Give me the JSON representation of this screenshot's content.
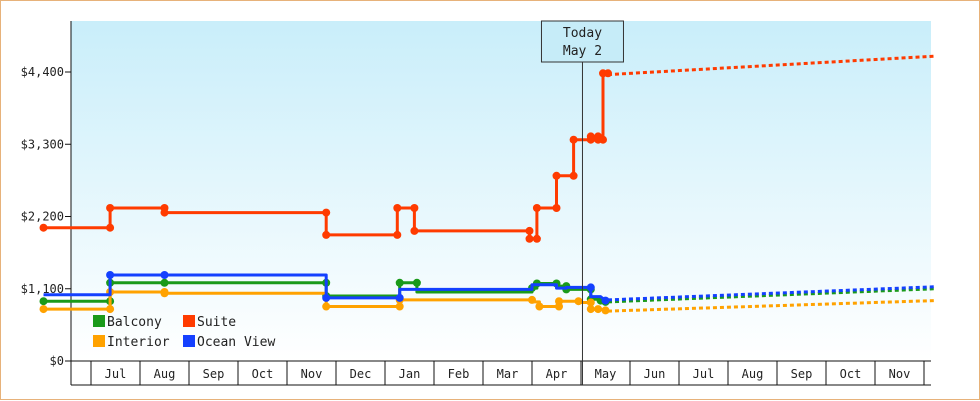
{
  "chart_data": {
    "type": "line",
    "title": "",
    "xlabel": "",
    "ylabel": "",
    "ylim": [
      0,
      4400
    ],
    "yticks": [
      {
        "value": 0,
        "label": "$0"
      },
      {
        "value": 1100,
        "label": "$1,100"
      },
      {
        "value": 2200,
        "label": "$2,200"
      },
      {
        "value": 3300,
        "label": "$3,300"
      },
      {
        "value": 4400,
        "label": "$4,400"
      }
    ],
    "months": [
      "Jul",
      "Aug",
      "Sep",
      "Oct",
      "Nov",
      "Dec",
      "Jan",
      "Feb",
      "Mar",
      "Apr",
      "May",
      "Jun",
      "Jul",
      "Aug",
      "Sep",
      "Oct",
      "Nov"
    ],
    "today": {
      "line1": "Today",
      "line2": "May 2",
      "x": 10.03
    },
    "grid": false,
    "legend_position": "bottom-left",
    "series": [
      {
        "name": "Balcony",
        "color": "#1a9a1a",
        "points": [
          [
            -0.97,
            910
          ],
          [
            0.39,
            910
          ],
          [
            0.39,
            1190
          ],
          [
            1.5,
            1190
          ],
          [
            1.5,
            1190
          ],
          [
            4.8,
            1190
          ],
          [
            4.8,
            990
          ],
          [
            6.3,
            990
          ],
          [
            6.3,
            1190
          ],
          [
            6.65,
            1190
          ],
          [
            6.65,
            1050
          ],
          [
            9.0,
            1050
          ],
          [
            9.0,
            1110
          ],
          [
            9.1,
            1110
          ],
          [
            9.1,
            1180
          ],
          [
            9.5,
            1180
          ],
          [
            9.5,
            1140
          ],
          [
            9.7,
            1140
          ],
          [
            9.7,
            1090
          ],
          [
            10.2,
            1090
          ],
          [
            10.2,
            940
          ],
          [
            10.45,
            940
          ],
          [
            10.5,
            900
          ]
        ],
        "forecast": [
          [
            10.55,
            900
          ],
          [
            17.2,
            1100
          ]
        ],
        "markers": [
          [
            -0.97,
            910
          ],
          [
            0.39,
            910
          ],
          [
            0.39,
            1190
          ],
          [
            1.5,
            1190
          ],
          [
            4.8,
            1190
          ],
          [
            4.8,
            990
          ],
          [
            6.3,
            1190
          ],
          [
            6.65,
            1190
          ],
          [
            9.0,
            1110
          ],
          [
            9.1,
            1180
          ],
          [
            9.5,
            1180
          ],
          [
            9.7,
            1140
          ],
          [
            9.7,
            1090
          ],
          [
            10.2,
            1090
          ],
          [
            10.2,
            940
          ],
          [
            10.4,
            920
          ],
          [
            10.5,
            900
          ]
        ]
      },
      {
        "name": "Suite",
        "color": "#ff3b00",
        "points": [
          [
            -0.97,
            2030
          ],
          [
            0.39,
            2030
          ],
          [
            0.39,
            2330
          ],
          [
            1.5,
            2330
          ],
          [
            1.5,
            2260
          ],
          [
            4.8,
            2260
          ],
          [
            4.8,
            1920
          ],
          [
            6.25,
            1920
          ],
          [
            6.25,
            2330
          ],
          [
            6.6,
            2330
          ],
          [
            6.6,
            1980
          ],
          [
            8.95,
            1980
          ],
          [
            8.95,
            1860
          ],
          [
            9.1,
            1860
          ],
          [
            9.1,
            2330
          ],
          [
            9.5,
            2330
          ],
          [
            9.5,
            2820
          ],
          [
            9.85,
            2820
          ],
          [
            9.85,
            3370
          ],
          [
            10.2,
            3370
          ],
          [
            10.2,
            3420
          ],
          [
            10.35,
            3420
          ],
          [
            10.35,
            3370
          ],
          [
            10.45,
            3370
          ],
          [
            10.45,
            4380
          ],
          [
            10.55,
            4380
          ]
        ],
        "forecast": [
          [
            10.55,
            4360
          ],
          [
            17.2,
            4640
          ]
        ],
        "markers": [
          [
            -0.97,
            2030
          ],
          [
            0.39,
            2030
          ],
          [
            0.39,
            2330
          ],
          [
            1.5,
            2330
          ],
          [
            1.5,
            2260
          ],
          [
            4.8,
            2260
          ],
          [
            4.8,
            1920
          ],
          [
            6.25,
            1920
          ],
          [
            6.25,
            2330
          ],
          [
            6.6,
            2330
          ],
          [
            6.6,
            1980
          ],
          [
            8.95,
            1980
          ],
          [
            8.95,
            1860
          ],
          [
            9.1,
            1860
          ],
          [
            9.1,
            2330
          ],
          [
            9.5,
            2330
          ],
          [
            9.5,
            2820
          ],
          [
            9.85,
            2820
          ],
          [
            9.85,
            3370
          ],
          [
            10.2,
            3370
          ],
          [
            10.2,
            3420
          ],
          [
            10.35,
            3420
          ],
          [
            10.35,
            3370
          ],
          [
            10.45,
            3370
          ],
          [
            10.45,
            4380
          ],
          [
            10.55,
            4380
          ]
        ]
      },
      {
        "name": "Interior",
        "color": "#ffa200",
        "points": [
          [
            -0.97,
            790
          ],
          [
            0.39,
            790
          ],
          [
            0.39,
            1050
          ],
          [
            1.5,
            1050
          ],
          [
            1.5,
            1030
          ],
          [
            4.8,
            1030
          ],
          [
            4.8,
            830
          ],
          [
            6.3,
            830
          ],
          [
            6.3,
            930
          ],
          [
            9.0,
            930
          ],
          [
            9.0,
            900
          ],
          [
            9.15,
            900
          ],
          [
            9.15,
            830
          ],
          [
            9.55,
            830
          ],
          [
            9.55,
            910
          ],
          [
            9.95,
            910
          ],
          [
            9.95,
            890
          ],
          [
            10.2,
            890
          ],
          [
            10.2,
            790
          ],
          [
            10.4,
            790
          ],
          [
            10.5,
            770
          ]
        ],
        "forecast": [
          [
            10.55,
            760
          ],
          [
            17.2,
            920
          ]
        ],
        "markers": [
          [
            -0.97,
            790
          ],
          [
            0.39,
            790
          ],
          [
            0.39,
            1050
          ],
          [
            1.5,
            1050
          ],
          [
            1.5,
            1030
          ],
          [
            4.8,
            830
          ],
          [
            6.3,
            830
          ],
          [
            6.3,
            930
          ],
          [
            9.0,
            930
          ],
          [
            9.15,
            830
          ],
          [
            9.55,
            830
          ],
          [
            9.55,
            910
          ],
          [
            9.95,
            910
          ],
          [
            10.2,
            890
          ],
          [
            10.2,
            790
          ],
          [
            10.35,
            790
          ],
          [
            10.5,
            770
          ]
        ]
      },
      {
        "name": "Ocean View",
        "color": "#1440ff",
        "points": [
          [
            -0.97,
            1010
          ],
          [
            0.39,
            1010
          ],
          [
            0.39,
            1310
          ],
          [
            1.5,
            1310
          ],
          [
            4.8,
            1310
          ],
          [
            4.8,
            960
          ],
          [
            6.3,
            960
          ],
          [
            6.3,
            1090
          ],
          [
            9.0,
            1090
          ],
          [
            9.0,
            1160
          ],
          [
            9.5,
            1160
          ],
          [
            9.5,
            1110
          ],
          [
            9.7,
            1110
          ],
          [
            9.7,
            1120
          ],
          [
            10.2,
            1120
          ],
          [
            10.2,
            980
          ],
          [
            10.4,
            980
          ],
          [
            10.5,
            920
          ]
        ],
        "forecast": [
          [
            10.55,
            930
          ],
          [
            17.2,
            1130
          ]
        ],
        "markers": [
          [
            0.39,
            1310
          ],
          [
            1.5,
            1310
          ],
          [
            4.8,
            960
          ],
          [
            6.3,
            960
          ],
          [
            10.2,
            1120
          ],
          [
            10.5,
            920
          ]
        ]
      }
    ]
  }
}
